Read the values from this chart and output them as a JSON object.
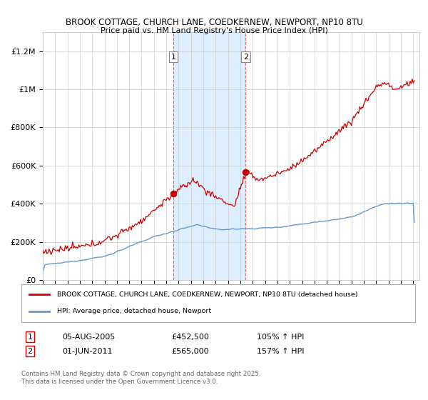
{
  "title": "BROOK COTTAGE, CHURCH LANE, COEDKERNEW, NEWPORT, NP10 8TU",
  "subtitle": "Price paid vs. HM Land Registry's House Price Index (HPI)",
  "legend_line1": "BROOK COTTAGE, CHURCH LANE, COEDKERNEW, NEWPORT, NP10 8TU (detached house)",
  "legend_line2": "HPI: Average price, detached house, Newport",
  "transaction1_date": "05-AUG-2005",
  "transaction1_price": "£452,500",
  "transaction1_hpi": "105% ↑ HPI",
  "transaction2_date": "01-JUN-2011",
  "transaction2_price": "£565,000",
  "transaction2_hpi": "157% ↑ HPI",
  "footer": "Contains HM Land Registry data © Crown copyright and database right 2025.\nThis data is licensed under the Open Government Licence v3.0.",
  "ylim": [
    0,
    1300000
  ],
  "yticks": [
    0,
    200000,
    400000,
    600000,
    800000,
    1000000,
    1200000
  ],
  "ytick_labels": [
    "£0",
    "£200K",
    "£400K",
    "£600K",
    "£800K",
    "£1M",
    "£1.2M"
  ],
  "red_color": "#cc0000",
  "blue_color": "#6699cc",
  "highlight_color": "#ddeeff",
  "vline1_x": 2005.58,
  "vline2_x": 2011.42,
  "transaction1_x": 2005.58,
  "transaction1_y": 452500,
  "transaction2_x": 2011.42,
  "transaction2_y": 565000,
  "xmin": 1995.0,
  "xmax": 2025.5
}
